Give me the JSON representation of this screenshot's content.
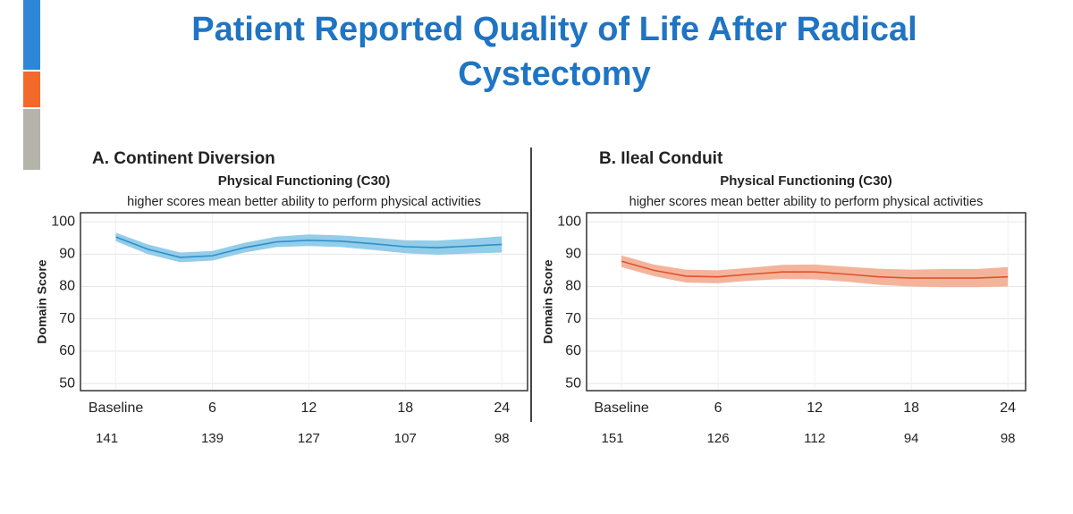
{
  "title": "Patient Reported Quality of Life After Radical Cystectomy",
  "chart_data": [
    {
      "type": "line",
      "title": "A. Continent Diversion",
      "subtitle": "Physical Functioning (C30)",
      "note": "higher scores mean better ability to perform physical activities",
      "y_label": "Domain Score",
      "x": [
        0,
        2,
        4,
        6,
        8,
        10,
        12,
        14,
        16,
        18,
        20,
        22,
        24
      ],
      "series": [
        {
          "color": "#2e8fc9",
          "band_color": "#93cde9",
          "values": [
            95.3,
            91.5,
            89,
            89.5,
            92,
            93.8,
            94.3,
            94,
            93.2,
            92.3,
            92,
            92.5,
            93
          ],
          "lower": [
            94,
            90,
            87.5,
            88,
            90.5,
            92.2,
            92.5,
            92.2,
            91.3,
            90.3,
            89.8,
            90.2,
            90.5
          ],
          "upper": [
            96.6,
            93,
            90.5,
            91,
            93.5,
            95.4,
            96.1,
            95.8,
            95.1,
            94.3,
            94.2,
            94.8,
            95.5
          ]
        }
      ],
      "xlim": [
        -2.2,
        25.6
      ],
      "xticks": [
        {
          "value": 0,
          "label": "Baseline"
        },
        6,
        12,
        18,
        24
      ],
      "ylim": [
        47.8,
        102.8
      ],
      "yticks": [
        50,
        60,
        70,
        80,
        90,
        100
      ],
      "grid": true,
      "n_at_risk": [
        141,
        139,
        127,
        107,
        98
      ]
    },
    {
      "type": "line",
      "title": "B. Ileal Conduit",
      "subtitle": "Physical Functioning (C30)",
      "note": "higher scores mean better ability to perform physical activities",
      "y_label": "Domain Score",
      "x": [
        0,
        2,
        4,
        6,
        8,
        10,
        12,
        14,
        16,
        18,
        20,
        22,
        24
      ],
      "series": [
        {
          "color": "#e0522a",
          "band_color": "#f3b49b",
          "values": [
            87.8,
            85,
            83.2,
            83,
            83.8,
            84.5,
            84.5,
            83.8,
            83,
            82.6,
            82.6,
            82.6,
            83
          ],
          "lower": [
            86,
            83.2,
            81.2,
            81,
            81.8,
            82.3,
            82.2,
            81.5,
            80.5,
            80,
            79.8,
            79.8,
            80
          ],
          "upper": [
            89.6,
            86.8,
            85.2,
            85,
            85.8,
            86.7,
            86.8,
            86.1,
            85.5,
            85.2,
            85.4,
            85.4,
            86
          ]
        }
      ],
      "xlim": [
        -2.17,
        25.1
      ],
      "xticks": [
        {
          "value": 0,
          "label": "Baseline"
        },
        6,
        12,
        18,
        24
      ],
      "ylim": [
        47.8,
        102.8
      ],
      "yticks": [
        50,
        60,
        70,
        80,
        90,
        100
      ],
      "grid": true,
      "n_at_risk": [
        151,
        126,
        112,
        94,
        98
      ]
    }
  ]
}
